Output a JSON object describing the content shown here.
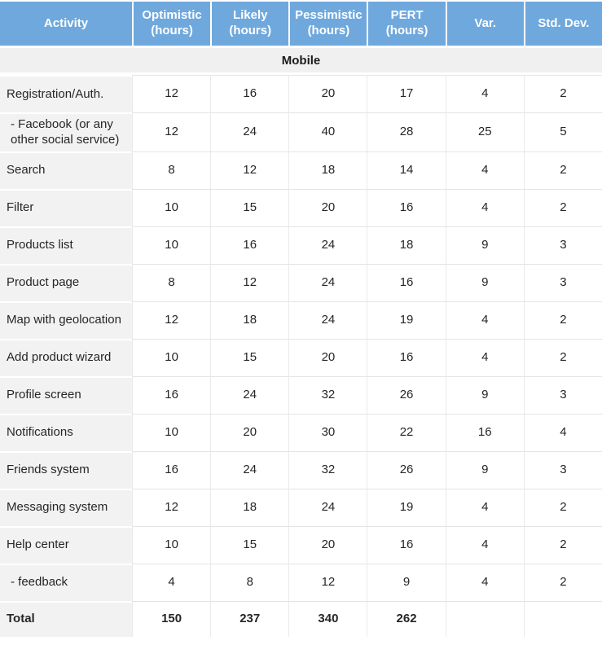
{
  "colors": {
    "header_bg": "#6FA8DC",
    "header_text": "#FFFFFF",
    "section_bg": "#F0F0F0",
    "activity_column_bg": "#F2F2F2",
    "row_separator": "#E4E4E4"
  },
  "table": {
    "columns": [
      {
        "label": "Activity"
      },
      {
        "label": "Optimistic (hours)"
      },
      {
        "label": "Likely (hours)"
      },
      {
        "label": "Pessimistic (hours)"
      },
      {
        "label": "PERT (hours)"
      },
      {
        "label": "Var."
      },
      {
        "label": "Std. Dev."
      }
    ],
    "section": "Mobile",
    "rows": [
      {
        "activity": "Registration/Auth.",
        "sub": false,
        "values": [
          "12",
          "16",
          "20",
          "17",
          "4",
          "2"
        ]
      },
      {
        "activity": "- Facebook (or any other social service)",
        "sub": true,
        "values": [
          "12",
          "24",
          "40",
          "28",
          "25",
          "5"
        ]
      },
      {
        "activity": "Search",
        "sub": false,
        "values": [
          "8",
          "12",
          "18",
          "14",
          "4",
          "2"
        ]
      },
      {
        "activity": "Filter",
        "sub": false,
        "values": [
          "10",
          "15",
          "20",
          "16",
          "4",
          "2"
        ]
      },
      {
        "activity": "Products list",
        "sub": false,
        "values": [
          "10",
          "16",
          "24",
          "18",
          "9",
          "3"
        ]
      },
      {
        "activity": "Product page",
        "sub": false,
        "values": [
          "8",
          "12",
          "24",
          "16",
          "9",
          "3"
        ]
      },
      {
        "activity": "Map with geolocation",
        "sub": false,
        "values": [
          "12",
          "18",
          "24",
          "19",
          "4",
          "2"
        ]
      },
      {
        "activity": "Add product wizard",
        "sub": false,
        "values": [
          "10",
          "15",
          "20",
          "16",
          "4",
          "2"
        ]
      },
      {
        "activity": "Profile screen",
        "sub": false,
        "values": [
          "16",
          "24",
          "32",
          "26",
          "9",
          "3"
        ]
      },
      {
        "activity": "Notifications",
        "sub": false,
        "values": [
          "10",
          "20",
          "30",
          "22",
          "16",
          "4"
        ]
      },
      {
        "activity": "Friends system",
        "sub": false,
        "values": [
          "16",
          "24",
          "32",
          "26",
          "9",
          "3"
        ]
      },
      {
        "activity": "Messaging system",
        "sub": false,
        "values": [
          "12",
          "18",
          "24",
          "19",
          "4",
          "2"
        ]
      },
      {
        "activity": "Help center",
        "sub": false,
        "values": [
          "10",
          "15",
          "20",
          "16",
          "4",
          "2"
        ]
      },
      {
        "activity": "- feedback",
        "sub": true,
        "values": [
          "4",
          "8",
          "12",
          "9",
          "4",
          "2"
        ]
      }
    ],
    "total_row": {
      "activity": "Total",
      "values": [
        "150",
        "237",
        "340",
        "262",
        "",
        ""
      ]
    }
  }
}
